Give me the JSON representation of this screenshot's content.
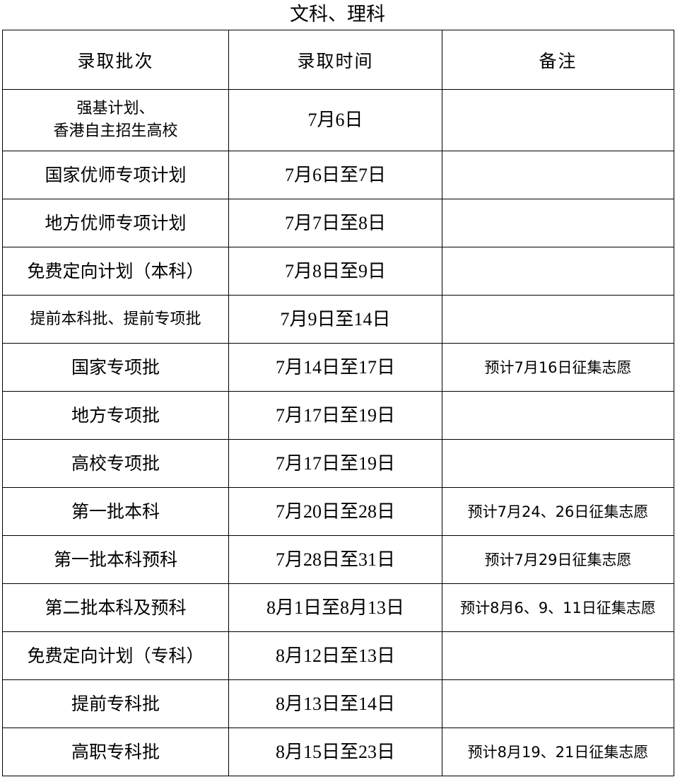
{
  "title": "文科、理科",
  "headers": [
    "录取批次",
    "录取时间",
    "备注"
  ],
  "rows": [
    {
      "batch": "强基计划、\n香港自主招生高校",
      "time": "7月6日",
      "note": ""
    },
    {
      "batch": "国家优师专项计划",
      "time": "7月6日至7日",
      "note": ""
    },
    {
      "batch": "地方优师专项计划",
      "time": "7月7日至8日",
      "note": ""
    },
    {
      "batch": "免费定向计划（本科）",
      "time": "7月8日至9日",
      "note": ""
    },
    {
      "batch": "提前本科批、提前专项批",
      "time": "7月9日至14日",
      "note": ""
    },
    {
      "batch": "国家专项批",
      "time": "7月14日至17日",
      "note": "预计7月16日征集志愿"
    },
    {
      "batch": "地方专项批",
      "time": "7月17日至19日",
      "note": ""
    },
    {
      "batch": "高校专项批",
      "time": "7月17日至19日",
      "note": ""
    },
    {
      "batch": "第一批本科",
      "time": "7月20日至28日",
      "note": "预计7月24、26日征集志愿"
    },
    {
      "batch": "第一批本科预科",
      "time": "7月28日至31日",
      "note": "预计7月29日征集志愿"
    },
    {
      "batch": "第二批本科及预科",
      "time": "8月1日至8月13日",
      "note": "预计8月6、9、11日征集志愿"
    },
    {
      "batch": "免费定向计划（专科）",
      "time": "8月12日至13日",
      "note": ""
    },
    {
      "batch": "提前专科批",
      "time": "8月13日至14日",
      "note": ""
    },
    {
      "batch": "高职专科批",
      "time": "8月15日至23日",
      "note": "预计8月19、21日征集志愿"
    }
  ]
}
